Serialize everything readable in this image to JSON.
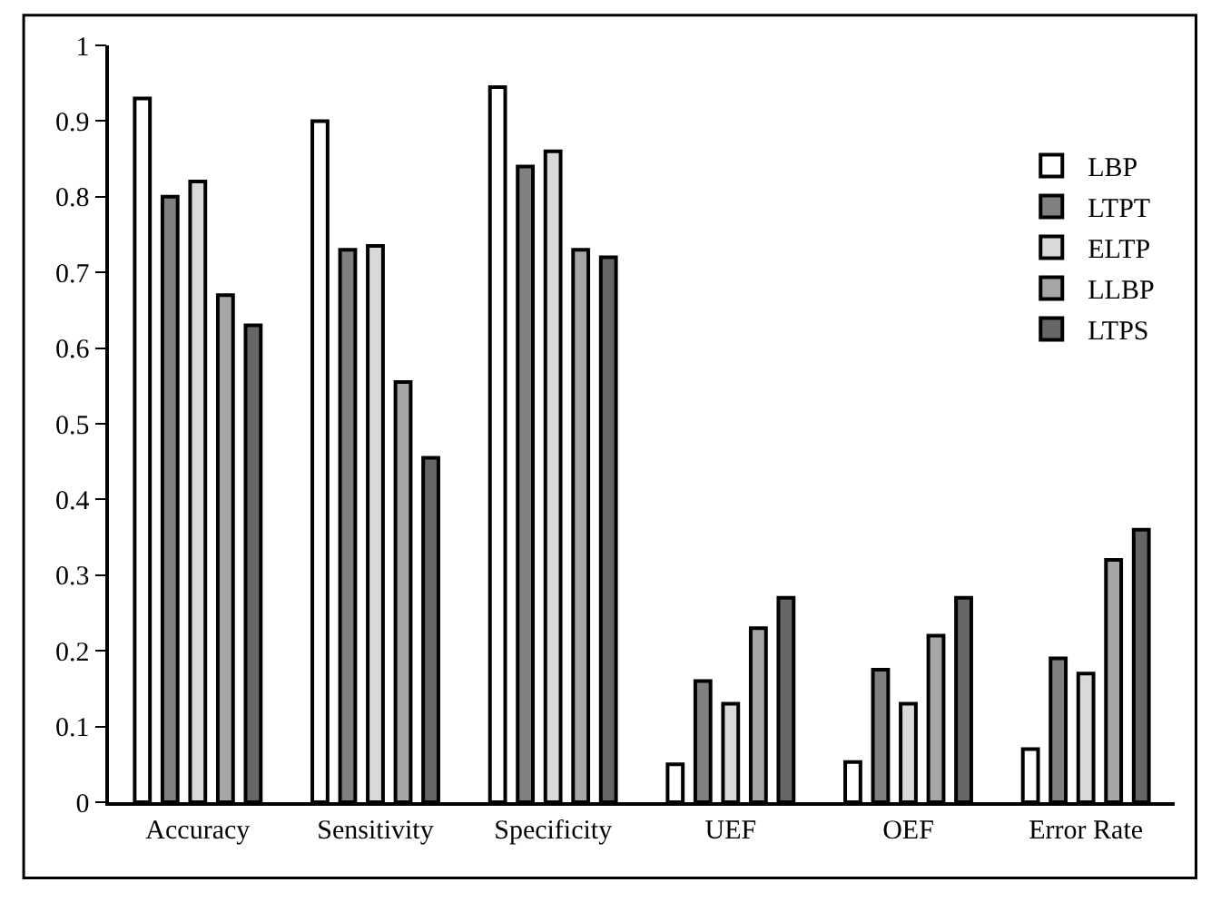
{
  "chart_data": {
    "type": "bar",
    "categories": [
      "Accuracy",
      "Sensitivity",
      "Specificity",
      "UEF",
      "OEF",
      "Error Rate"
    ],
    "series": [
      {
        "name": "LBP",
        "color": "#ffffff",
        "values": [
          0.93,
          0.9,
          0.945,
          0.05,
          0.053,
          0.07
        ]
      },
      {
        "name": "LTPT",
        "color": "#808080",
        "values": [
          0.8,
          0.73,
          0.84,
          0.16,
          0.175,
          0.19
        ]
      },
      {
        "name": "ELTP",
        "color": "#d9d9d9",
        "values": [
          0.82,
          0.735,
          0.86,
          0.13,
          0.13,
          0.17
        ]
      },
      {
        "name": "LLBP",
        "color": "#a6a6a6",
        "values": [
          0.67,
          0.555,
          0.73,
          0.23,
          0.22,
          0.32
        ]
      },
      {
        "name": "LTPS",
        "color": "#666666",
        "values": [
          0.63,
          0.455,
          0.72,
          0.27,
          0.27,
          0.36
        ]
      }
    ],
    "ylim": [
      0,
      1
    ],
    "yticks": [
      0,
      0.1,
      0.2,
      0.3,
      0.4,
      0.5,
      0.6,
      0.7,
      0.8,
      0.9,
      1
    ],
    "legend": "top right"
  }
}
